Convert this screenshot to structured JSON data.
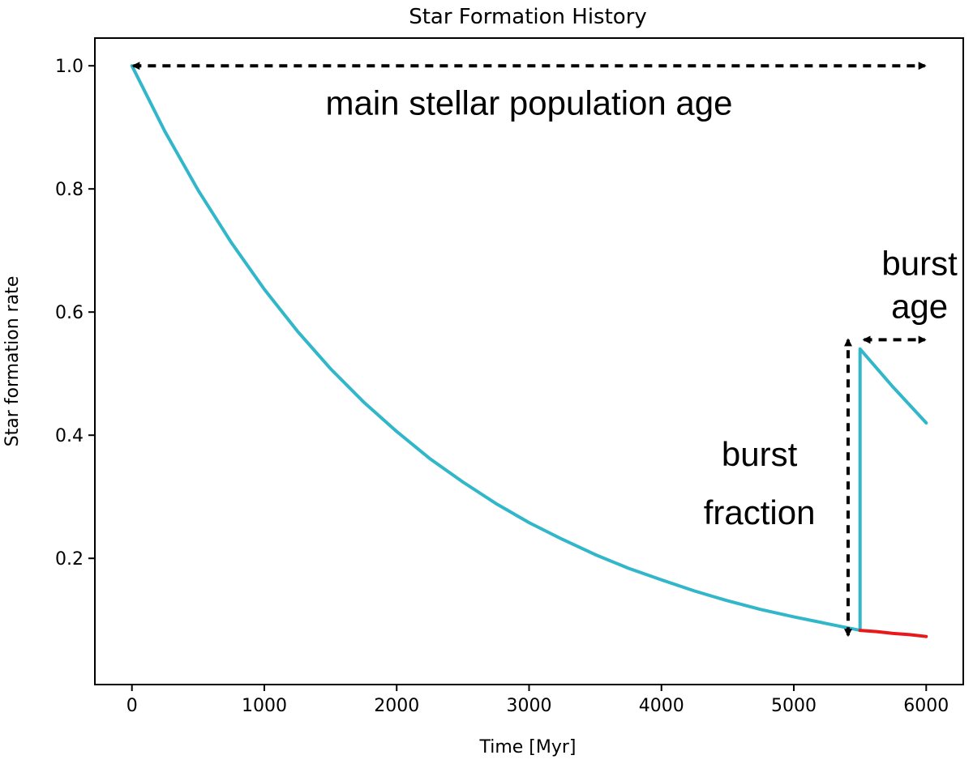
{
  "chart_data": {
    "type": "line",
    "title": "Star Formation History",
    "xlabel": "Time [Myr]",
    "ylabel": "Star formation rate",
    "xlim": [
      -280,
      6280
    ],
    "ylim": [
      -0.005,
      1.045
    ],
    "xticks": [
      0,
      1000,
      2000,
      3000,
      4000,
      5000,
      6000
    ],
    "xtick_labels": [
      "0",
      "1000",
      "2000",
      "3000",
      "4000",
      "5000",
      "6000"
    ],
    "yticks": [
      0.2,
      0.4,
      0.6,
      0.8,
      1.0
    ],
    "ytick_labels": [
      "0.2",
      "0.4",
      "0.6",
      "0.8",
      "1.0"
    ],
    "grid": false,
    "series": [
      {
        "color": "#31b7c9",
        "x": [
          0,
          250,
          500,
          750,
          1000,
          1250,
          1500,
          1750,
          2000,
          2250,
          2500,
          2750,
          3000,
          3250,
          3500,
          3750,
          4000,
          4250,
          4500,
          4750,
          5000,
          5250,
          5500,
          5500,
          5750,
          6000
        ],
        "y": [
          1.0,
          0.893,
          0.798,
          0.713,
          0.637,
          0.569,
          0.508,
          0.454,
          0.406,
          0.362,
          0.324,
          0.289,
          0.258,
          0.231,
          0.206,
          0.184,
          0.165,
          0.147,
          0.131,
          0.117,
          0.105,
          0.094,
          0.083,
          0.54,
          0.478,
          0.42
        ]
      },
      {
        "color": "#e8191b",
        "x": [
          5500,
          5625,
          5750,
          5875,
          6000
        ],
        "y": [
          0.083,
          0.081,
          0.078,
          0.076,
          0.073
        ]
      }
    ],
    "annotations": [
      {
        "text": "main stellar population age",
        "x": 3000,
        "y": 0.935
      },
      {
        "text": "burst",
        "x": 5950,
        "y": 0.675
      },
      {
        "text": "age",
        "x": 5950,
        "y": 0.605
      },
      {
        "text": "burst",
        "x": 4740,
        "y": 0.365
      },
      {
        "text": "fraction",
        "x": 4740,
        "y": 0.27
      }
    ],
    "arrows": [
      {
        "x1": 10,
        "y1": 1.0,
        "x2": 5990,
        "y2": 1.0
      },
      {
        "x1": 5530,
        "y1": 0.555,
        "x2": 5990,
        "y2": 0.555
      },
      {
        "x1": 5410,
        "y1": 0.075,
        "x2": 5410,
        "y2": 0.555
      }
    ]
  }
}
